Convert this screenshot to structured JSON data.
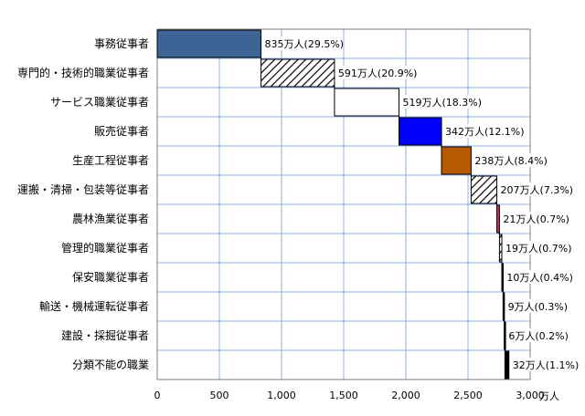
{
  "chart_data": {
    "type": "bar",
    "subtype": "waterfall-horizontal",
    "categories": [
      "事務従事者",
      "専門的・技術的職業従事者",
      "サービス職業従事者",
      "販売従事者",
      "生産工程従事者",
      "運搬・清掃・包装等従事者",
      "農林漁業従事者",
      "管理的職業従事者",
      "保安職業従事者",
      "輸送・機械運転従事者",
      "建設・採掘従事者",
      "分類不能の職業"
    ],
    "values": [
      835,
      591,
      519,
      342,
      238,
      207,
      21,
      19,
      10,
      9,
      6,
      32
    ],
    "data_labels": [
      "835万人(29.5%)",
      "591万人(20.9%)",
      "519万人(18.3%)",
      "342万人(12.1%)",
      "238万人(8.4%)",
      "207万人(7.3%)",
      "21万人(0.7%)",
      "19万人(0.7%)",
      "10万人(0.4%)",
      "9万人(0.3%)",
      "6万人(0.2%)",
      "32万人(1.1%)"
    ],
    "colors": [
      "#3d6495",
      "hatch",
      "#ffffff",
      "#0000ff",
      "#b45a00",
      "hatch",
      "#c0395a",
      "hatch",
      "#000000",
      "#000000",
      "#000000",
      "#000000"
    ],
    "xlim": [
      0,
      3000
    ],
    "xticks": [
      0,
      500,
      1000,
      1500,
      2000,
      2500,
      3000
    ],
    "xtick_labels": [
      "0",
      "500",
      "1,000",
      "1,500",
      "2,000",
      "2,500",
      "3,000"
    ],
    "x_unit": "万人",
    "grid": true
  }
}
